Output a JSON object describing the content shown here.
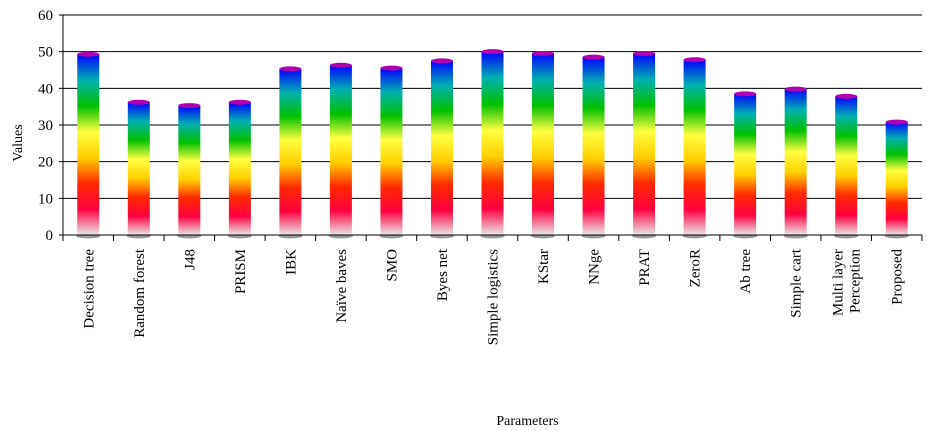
{
  "chart_data": {
    "type": "bar",
    "title": "",
    "xlabel": "Parameters",
    "ylabel": "Values",
    "ylim": [
      0,
      60
    ],
    "yticks": [
      0,
      10,
      20,
      30,
      40,
      50,
      60
    ],
    "grid": true,
    "legend": "none",
    "categories": [
      "Decision tree",
      "Random forest",
      "J48",
      "PRISM",
      "IBK",
      "Naïve baves",
      "SMO",
      "Byes net",
      "Simple logistics",
      "KStar",
      "NNge",
      "PRAT",
      "ZeroR",
      "Ab tree",
      "Simple cart",
      "Multi layer Perception",
      "Proposed"
    ],
    "values": [
      49.3,
      36.2,
      35.3,
      36.2,
      45.3,
      46.3,
      45.5,
      47.5,
      50,
      49.5,
      48.5,
      49.5,
      47.8,
      38.5,
      39.8,
      37.8,
      30.8
    ],
    "bar_gradient": [
      "#e8e8e8",
      "#ff0040",
      "#ff2a00",
      "#ffd000",
      "#ffff40",
      "#00c000",
      "#00b0b0",
      "#0000ff"
    ]
  }
}
